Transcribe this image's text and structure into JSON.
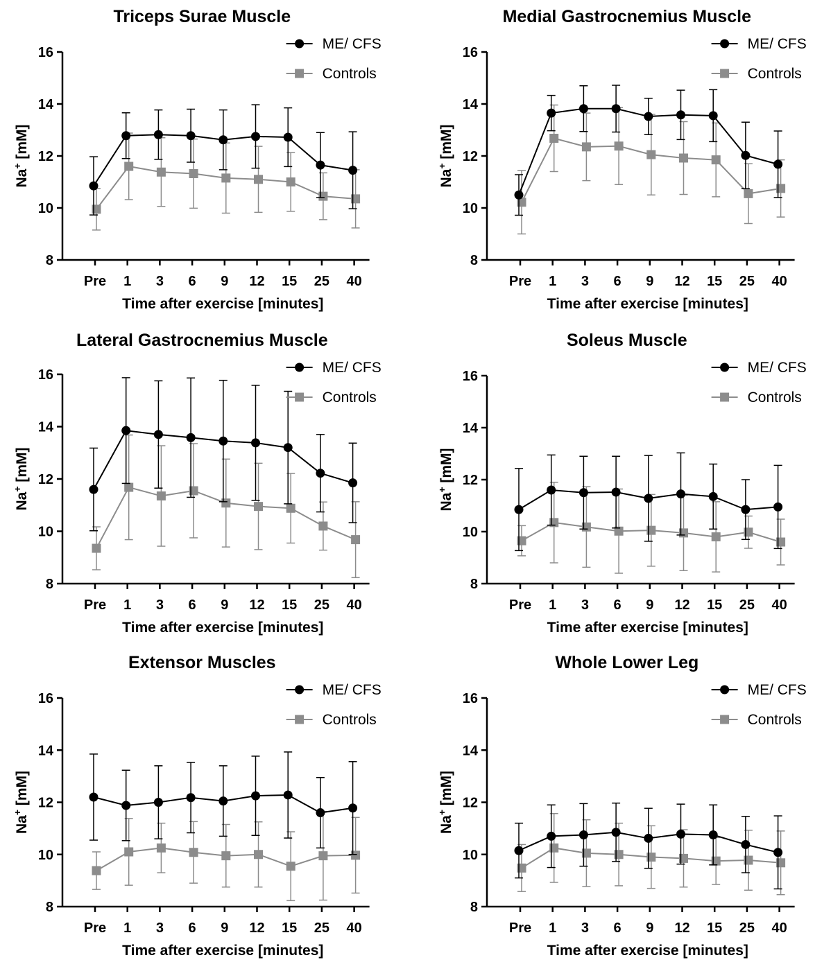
{
  "colors": {
    "me_cfs": "#000000",
    "controls": "#8c8c8c"
  },
  "chart_data": [
    {
      "type": "line",
      "title": "Triceps Surae Muscle",
      "xlabel": "Time after exercise [minutes]",
      "ylabel": "Na+ [mM]",
      "ylim": [
        8,
        16
      ],
      "yticks": [
        8,
        10,
        12,
        14,
        16
      ],
      "categories": [
        "Pre",
        "1",
        "3",
        "6",
        "9",
        "12",
        "15",
        "25",
        "40"
      ],
      "series": [
        {
          "name": "ME/ CFS",
          "marker": "circle",
          "values": [
            10.85,
            12.78,
            12.82,
            12.78,
            12.62,
            12.75,
            12.72,
            11.65,
            11.45
          ],
          "errors": [
            1.12,
            0.88,
            0.95,
            1.02,
            1.15,
            1.22,
            1.13,
            1.25,
            1.48
          ]
        },
        {
          "name": "Controls",
          "marker": "square",
          "values": [
            9.95,
            11.6,
            11.38,
            11.32,
            11.15,
            11.1,
            11.0,
            10.45,
            10.35
          ],
          "errors": [
            0.8,
            1.28,
            1.32,
            1.33,
            1.35,
            1.27,
            1.13,
            0.9,
            1.12
          ]
        }
      ],
      "legend": "top-right"
    },
    {
      "type": "line",
      "title": "Medial Gastrocnemius Muscle",
      "xlabel": "Time after exercise [minutes]",
      "ylabel": "Na+ [mM]",
      "ylim": [
        8,
        16
      ],
      "yticks": [
        8,
        10,
        12,
        14,
        16
      ],
      "categories": [
        "Pre",
        "1",
        "3",
        "6",
        "9",
        "12",
        "15",
        "25",
        "40"
      ],
      "series": [
        {
          "name": "ME/ CFS",
          "marker": "circle",
          "values": [
            10.5,
            13.65,
            13.82,
            13.82,
            13.52,
            13.58,
            13.55,
            12.02,
            11.68
          ],
          "errors": [
            0.78,
            0.68,
            0.88,
            0.9,
            0.7,
            0.95,
            1.0,
            1.28,
            1.28
          ]
        },
        {
          "name": "Controls",
          "marker": "square",
          "values": [
            10.22,
            12.68,
            12.35,
            12.38,
            12.05,
            11.92,
            11.85,
            10.55,
            10.75
          ],
          "errors": [
            1.22,
            1.28,
            1.3,
            1.48,
            1.55,
            1.4,
            1.42,
            1.15,
            1.1
          ]
        }
      ],
      "legend": "top-right"
    },
    {
      "type": "line",
      "title": "Lateral Gastrocnemius Muscle",
      "xlabel": "Time after exercise [minutes]",
      "ylabel": "Na+ [mM]",
      "ylim": [
        8,
        16
      ],
      "yticks": [
        8,
        10,
        12,
        14,
        16
      ],
      "categories": [
        "Pre",
        "1",
        "3",
        "6",
        "9",
        "12",
        "15",
        "25",
        "40"
      ],
      "series": [
        {
          "name": "ME/ CFS",
          "marker": "circle",
          "values": [
            11.6,
            13.85,
            13.7,
            13.58,
            13.45,
            13.38,
            13.2,
            12.22,
            11.85
          ],
          "errors": [
            1.58,
            2.02,
            2.05,
            2.28,
            2.32,
            2.2,
            2.15,
            1.48,
            1.52
          ]
        },
        {
          "name": "Controls",
          "marker": "square",
          "values": [
            9.35,
            11.68,
            11.35,
            11.55,
            11.08,
            10.95,
            10.88,
            10.2,
            9.68
          ],
          "errors": [
            0.82,
            2.0,
            1.92,
            1.8,
            1.68,
            1.65,
            1.33,
            0.92,
            1.45
          ]
        }
      ],
      "legend": "top-right"
    },
    {
      "type": "line",
      "title": "Soleus Muscle",
      "xlabel": "Time after exercise [minutes]",
      "ylabel": "Na+ [mM]",
      "ylim": [
        8,
        16
      ],
      "yticks": [
        8,
        10,
        12,
        14,
        16
      ],
      "categories": [
        "Pre",
        "1",
        "3",
        "6",
        "9",
        "12",
        "15",
        "25",
        "40"
      ],
      "series": [
        {
          "name": "ME/ CFS",
          "marker": "circle",
          "values": [
            10.85,
            11.6,
            11.5,
            11.52,
            11.28,
            11.45,
            11.35,
            10.85,
            10.95
          ],
          "errors": [
            1.58,
            1.35,
            1.4,
            1.38,
            1.65,
            1.58,
            1.25,
            1.15,
            1.6
          ]
        },
        {
          "name": "Controls",
          "marker": "square",
          "values": [
            9.65,
            10.35,
            10.18,
            10.02,
            10.05,
            9.95,
            9.8,
            9.98,
            9.6
          ],
          "errors": [
            0.58,
            1.55,
            1.55,
            1.62,
            1.38,
            1.45,
            1.35,
            0.62,
            0.88
          ]
        }
      ],
      "legend": "top-right"
    },
    {
      "type": "line",
      "title": "Extensor Muscles",
      "xlabel": "Time after exercise [minutes]",
      "ylabel": "Na+ [mM]",
      "ylim": [
        8,
        16
      ],
      "yticks": [
        8,
        10,
        12,
        14,
        16
      ],
      "categories": [
        "Pre",
        "1",
        "3",
        "6",
        "9",
        "12",
        "15",
        "25",
        "40"
      ],
      "series": [
        {
          "name": "ME/ CFS",
          "marker": "circle",
          "values": [
            12.2,
            11.88,
            12.0,
            12.18,
            12.05,
            12.25,
            12.28,
            11.6,
            11.78
          ],
          "errors": [
            1.65,
            1.35,
            1.4,
            1.35,
            1.35,
            1.52,
            1.65,
            1.35,
            1.78
          ]
        },
        {
          "name": "Controls",
          "marker": "square",
          "values": [
            9.38,
            10.1,
            10.25,
            10.08,
            9.95,
            10.0,
            9.55,
            9.95,
            9.97
          ],
          "errors": [
            0.72,
            1.28,
            0.95,
            1.18,
            1.2,
            1.25,
            1.32,
            1.7,
            1.45
          ]
        }
      ],
      "legend": "top-right"
    },
    {
      "type": "line",
      "title": "Whole Lower Leg",
      "xlabel": "Time after exercise [minutes]",
      "ylabel": "Na+ [mM]",
      "ylim": [
        8,
        16
      ],
      "yticks": [
        8,
        10,
        12,
        14,
        16
      ],
      "categories": [
        "Pre",
        "1",
        "3",
        "6",
        "9",
        "12",
        "15",
        "25",
        "40"
      ],
      "series": [
        {
          "name": "ME/ CFS",
          "marker": "circle",
          "values": [
            10.15,
            10.7,
            10.75,
            10.85,
            10.62,
            10.78,
            10.75,
            10.38,
            10.08
          ],
          "errors": [
            1.05,
            1.2,
            1.2,
            1.12,
            1.15,
            1.15,
            1.15,
            1.08,
            1.4
          ]
        },
        {
          "name": "Controls",
          "marker": "square",
          "values": [
            9.48,
            10.25,
            10.05,
            10.0,
            9.9,
            9.85,
            9.75,
            9.78,
            9.68
          ],
          "errors": [
            0.9,
            1.32,
            1.28,
            1.2,
            1.2,
            1.1,
            0.9,
            1.15,
            1.22
          ]
        }
      ],
      "legend": "top-right"
    }
  ]
}
